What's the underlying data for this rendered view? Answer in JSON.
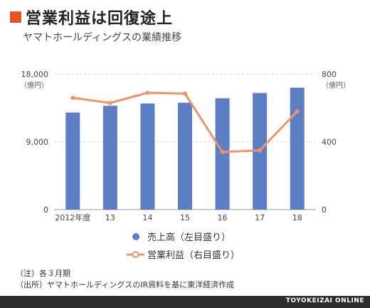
{
  "header": {
    "title": "営業利益は回復途上",
    "subtitle": "ヤマトホールディングスの業績推移"
  },
  "chart_data": {
    "type": "bar",
    "categories": [
      "2012年度",
      "13",
      "14",
      "15",
      "16",
      "17",
      "18"
    ],
    "series": [
      {
        "name": "売上高（左目盛り）",
        "kind": "bar",
        "axis": "left",
        "color": "#5b7ec5",
        "values": [
          12900,
          13800,
          14100,
          14200,
          14800,
          15500,
          16200
        ]
      },
      {
        "name": "営業利益（右目盛り）",
        "kind": "line",
        "axis": "right",
        "color": "#f0936a",
        "values": [
          660,
          630,
          690,
          685,
          340,
          350,
          580
        ]
      }
    ],
    "yleft": {
      "unit": "（億円）",
      "lim": [
        0,
        18000
      ],
      "ticks": [
        "18,000",
        "9,000",
        "0"
      ]
    },
    "yright": {
      "unit": "（億円）",
      "lim": [
        0,
        800
      ],
      "ticks": [
        "800",
        "400",
        "0"
      ]
    },
    "grid": true,
    "legend": "bottom"
  },
  "notes": [
    "（注）各３月期",
    "（出所）ヤマトホールディングスのIR資料を基に東洋経済作成"
  ],
  "footer": {
    "brand": "TOYOKEIZAI ONLINE"
  }
}
